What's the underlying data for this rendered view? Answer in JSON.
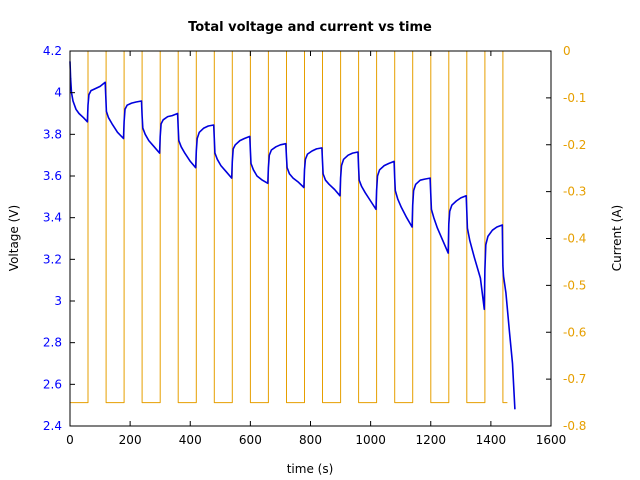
{
  "chart_data": {
    "type": "line",
    "title": "Total voltage and current vs time",
    "xlabel": "time (s)",
    "ylabel": "Voltage (V)",
    "y2label": "Current (A)",
    "xlim": [
      0,
      1600
    ],
    "ylim": [
      2.4,
      4.2
    ],
    "y2lim": [
      -0.8,
      0
    ],
    "xticks": [
      "0",
      "200",
      "400",
      "600",
      "800",
      "1000",
      "1200",
      "1400",
      "1600"
    ],
    "yticks": [
      "2.4",
      "2.6",
      "2.8",
      "3",
      "3.2",
      "3.4",
      "3.6",
      "3.8",
      "4",
      "4.2"
    ],
    "y2ticks": [
      "0",
      "-0.1",
      "-0.2",
      "-0.3",
      "-0.4",
      "-0.5",
      "-0.6",
      "-0.7",
      "-0.8"
    ],
    "colors": {
      "voltage": "#0000dd",
      "current": "#e69f00",
      "left_axis": "#0000ff",
      "right_axis": "#e69f00"
    },
    "grid": false,
    "series": [
      {
        "axis": "left",
        "x": [
          0,
          2,
          5,
          10,
          20,
          30,
          45,
          58,
          60,
          63,
          70,
          85,
          100,
          117,
          119,
          121,
          128,
          140,
          158,
          178,
          180,
          183,
          190,
          205,
          220,
          238,
          240,
          242,
          250,
          262,
          280,
          298,
          300,
          303,
          310,
          325,
          340,
          358,
          360,
          362,
          370,
          382,
          400,
          418,
          420,
          423,
          430,
          445,
          460,
          478,
          480,
          482,
          490,
          502,
          520,
          538,
          540,
          543,
          550,
          565,
          580,
          598,
          600,
          602,
          610,
          622,
          640,
          658,
          660,
          663,
          670,
          685,
          700,
          718,
          720,
          722,
          730,
          742,
          760,
          778,
          780,
          783,
          790,
          805,
          820,
          838,
          840,
          842,
          850,
          862,
          880,
          898,
          900,
          903,
          910,
          925,
          940,
          958,
          960,
          962,
          970,
          982,
          1000,
          1018,
          1020,
          1023,
          1030,
          1045,
          1060,
          1078,
          1080,
          1082,
          1090,
          1102,
          1120,
          1138,
          1140,
          1143,
          1150,
          1165,
          1180,
          1198,
          1200,
          1202,
          1210,
          1222,
          1240,
          1258,
          1260,
          1263,
          1270,
          1285,
          1300,
          1318,
          1320,
          1322,
          1330,
          1345,
          1365,
          1378,
          1380,
          1383,
          1390,
          1405,
          1420,
          1438,
          1440,
          1442,
          1450,
          1462,
          1472,
          1480
        ],
        "y": [
          4.15,
          4.07,
          4.0,
          3.96,
          3.92,
          3.9,
          3.88,
          3.86,
          3.94,
          3.99,
          4.01,
          4.02,
          4.03,
          4.05,
          3.98,
          3.91,
          3.88,
          3.85,
          3.81,
          3.78,
          3.86,
          3.92,
          3.94,
          3.95,
          3.955,
          3.96,
          3.89,
          3.83,
          3.8,
          3.77,
          3.74,
          3.71,
          3.79,
          3.85,
          3.87,
          3.885,
          3.89,
          3.9,
          3.83,
          3.77,
          3.74,
          3.71,
          3.67,
          3.64,
          3.72,
          3.78,
          3.81,
          3.83,
          3.84,
          3.845,
          3.78,
          3.71,
          3.68,
          3.65,
          3.62,
          3.59,
          3.67,
          3.73,
          3.75,
          3.77,
          3.78,
          3.79,
          3.72,
          3.66,
          3.63,
          3.6,
          3.58,
          3.565,
          3.64,
          3.7,
          3.725,
          3.74,
          3.75,
          3.755,
          3.69,
          3.64,
          3.61,
          3.59,
          3.57,
          3.545,
          3.63,
          3.68,
          3.705,
          3.72,
          3.73,
          3.735,
          3.67,
          3.61,
          3.58,
          3.56,
          3.535,
          3.505,
          3.59,
          3.65,
          3.68,
          3.7,
          3.71,
          3.715,
          3.64,
          3.58,
          3.55,
          3.52,
          3.48,
          3.44,
          3.53,
          3.6,
          3.63,
          3.65,
          3.66,
          3.67,
          3.59,
          3.53,
          3.49,
          3.45,
          3.4,
          3.355,
          3.46,
          3.53,
          3.56,
          3.58,
          3.585,
          3.59,
          3.51,
          3.44,
          3.4,
          3.35,
          3.29,
          3.23,
          3.37,
          3.43,
          3.46,
          3.48,
          3.495,
          3.505,
          3.43,
          3.35,
          3.29,
          3.21,
          3.11,
          2.96,
          3.15,
          3.27,
          3.31,
          3.34,
          3.355,
          3.365,
          3.17,
          3.12,
          3.04,
          2.85,
          2.7,
          2.48
        ]
      },
      {
        "axis": "right",
        "x": [
          0,
          60,
          60,
          120,
          120,
          180,
          180,
          240,
          240,
          300,
          300,
          360,
          360,
          420,
          420,
          480,
          480,
          540,
          540,
          600,
          600,
          660,
          660,
          720,
          720,
          780,
          780,
          840,
          840,
          900,
          900,
          960,
          960,
          1020,
          1020,
          1080,
          1080,
          1140,
          1140,
          1200,
          1200,
          1260,
          1260,
          1320,
          1320,
          1380,
          1380,
          1440,
          1440,
          1455
        ],
        "y": [
          -0.75,
          -0.75,
          0,
          0,
          -0.75,
          -0.75,
          0,
          0,
          -0.75,
          -0.75,
          0,
          0,
          -0.75,
          -0.75,
          0,
          0,
          -0.75,
          -0.75,
          0,
          0,
          -0.75,
          -0.75,
          0,
          0,
          -0.75,
          -0.75,
          0,
          0,
          -0.75,
          -0.75,
          0,
          0,
          -0.75,
          -0.75,
          0,
          0,
          -0.75,
          -0.75,
          0,
          0,
          -0.75,
          -0.75,
          0,
          0,
          -0.75,
          -0.75,
          0,
          0,
          -0.75,
          -0.75
        ]
      }
    ]
  }
}
